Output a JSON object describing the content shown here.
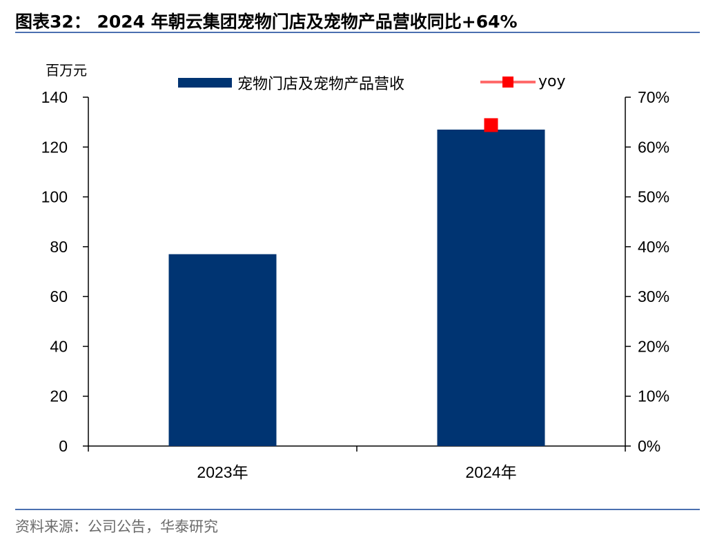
{
  "header": {
    "title": "图表32： 2024 年朝云集团宠物门店及宠物产品营收同比+64%"
  },
  "footer": {
    "source": "资料来源：公司公告，华泰研究"
  },
  "colors": {
    "bar": "#003472",
    "yoy_line": "#ff6b6b",
    "yoy_marker": "#ff0000",
    "rule": "#4a6fb0"
  },
  "chart_data": {
    "type": "bar",
    "unit_label": "百万元",
    "categories": [
      "2023年",
      "2024年"
    ],
    "series": [
      {
        "name": "宠物门店及宠物产品营收",
        "type": "bar",
        "axis": "left",
        "values": [
          77,
          127
        ]
      },
      {
        "name": "yoy",
        "type": "line-marker",
        "axis": "right",
        "values": [
          null,
          64.4
        ]
      }
    ],
    "y_left": {
      "min": 0,
      "max": 140,
      "step": 20,
      "ticks": [
        "0",
        "20",
        "40",
        "60",
        "80",
        "100",
        "120",
        "140"
      ]
    },
    "y_right": {
      "min": 0,
      "max": 70,
      "step": 10,
      "ticks": [
        "0%",
        "10%",
        "20%",
        "30%",
        "40%",
        "50%",
        "60%",
        "70%"
      ]
    },
    "grid": false,
    "legend_position": "top"
  }
}
